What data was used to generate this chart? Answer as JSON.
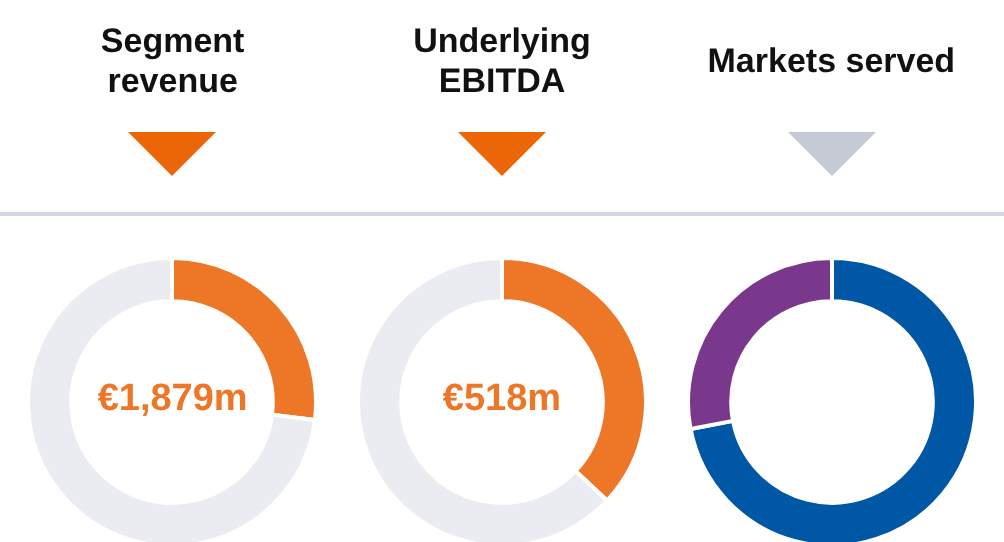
{
  "chart_data": [
    {
      "type": "donut",
      "title": "Segment revenue",
      "categories": [
        null,
        null
      ],
      "values": [
        27,
        73
      ],
      "colors": [
        "#ee7727",
        "#ebecf1"
      ],
      "annotations": [
        "€1,879m"
      ]
    },
    {
      "type": "donut",
      "title": "Underlying EBITDA",
      "categories": [
        null,
        null
      ],
      "values": [
        37,
        63
      ],
      "colors": [
        "#ee7727",
        "#ebecf1"
      ],
      "annotations": [
        "€518m"
      ]
    },
    {
      "type": "donut",
      "title": "Markets served",
      "categories": [
        null,
        null
      ],
      "values": [
        72,
        28
      ],
      "colors": [
        "#0057a5",
        "#7a388c"
      ]
    }
  ]
}
